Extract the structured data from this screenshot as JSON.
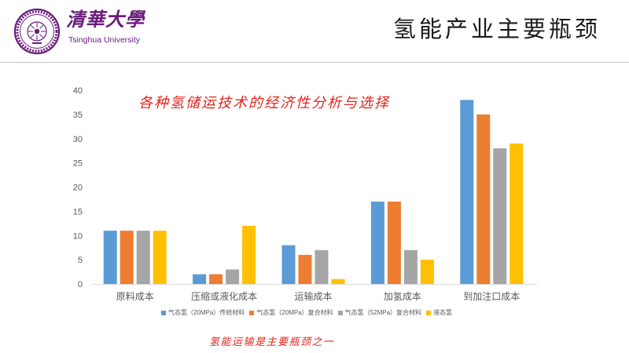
{
  "theme": {
    "brand_purple": "#6A1B7A",
    "highlight_red": "#E3241B"
  },
  "header": {
    "logo_calligraphy": "清華大學",
    "logo_subtitle": "Tsinghua University",
    "slide_title": "氢能产业主要瓶颈"
  },
  "chart_data": {
    "type": "bar",
    "title": "各种氢储运技术的经济性分析与选择",
    "categories": [
      "原料成本",
      "压缩或液化成本",
      "运输成本",
      "加氢成本",
      "到加注口成本"
    ],
    "series": [
      {
        "name": "气态氢（20MPa）传统材料",
        "color": "#5B9BD5",
        "values": [
          11,
          2,
          8,
          17,
          38
        ]
      },
      {
        "name": "气态氢（20MPa）复合材料",
        "color": "#ED7D31",
        "values": [
          11,
          2,
          6,
          17,
          35
        ]
      },
      {
        "name": "气态氢（52MPa）复合材料",
        "color": "#A5A5A5",
        "values": [
          11,
          3,
          7,
          7,
          28
        ]
      },
      {
        "name": "液态氢",
        "color": "#FFC000",
        "values": [
          11,
          12,
          1,
          5,
          29
        ]
      }
    ],
    "ylim": [
      0,
      40
    ],
    "yticks": [
      0,
      5,
      10,
      15,
      20,
      25,
      30,
      35,
      40
    ],
    "grid": false,
    "legend_position": "bottom"
  },
  "footer_note": "氢能运输是主要瓶颈之一"
}
